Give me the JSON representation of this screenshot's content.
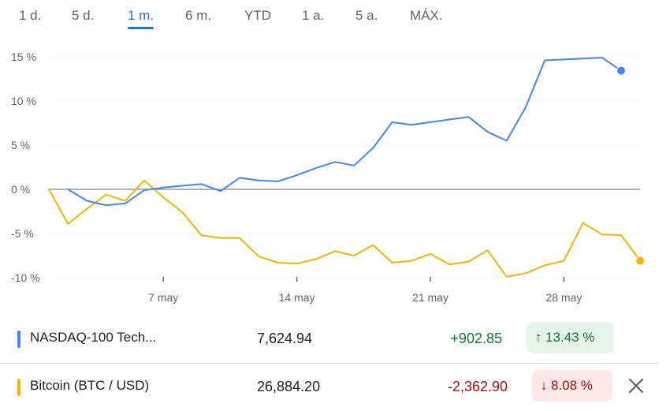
{
  "tabs": [
    {
      "label": "1 d.",
      "active": false
    },
    {
      "label": "5 d.",
      "active": false
    },
    {
      "label": "1 m.",
      "active": true
    },
    {
      "label": "6 m.",
      "active": false
    },
    {
      "label": "YTD",
      "active": false
    },
    {
      "label": "1 a.",
      "active": false
    },
    {
      "label": "5 a.",
      "active": false
    },
    {
      "label": "MÁX.",
      "active": false
    }
  ],
  "chart_data": {
    "type": "line",
    "title": "",
    "xlabel": "",
    "ylabel": "",
    "x_ticks": [
      "7 may",
      "14 may",
      "21 may",
      "28 may"
    ],
    "y_ticks": [
      "15 %",
      "10 %",
      "5 %",
      "0 %",
      "-5 %",
      "-10 %"
    ],
    "y_tick_values": [
      15,
      10,
      5,
      0,
      -5,
      -10
    ],
    "ylim": [
      -10,
      15
    ],
    "grid": "horizontal",
    "series": [
      {
        "name": "NASDAQ-100 Tech...",
        "color": "#4285f4",
        "points": [
          [
            "2023-05-02",
            0
          ],
          [
            "2023-05-03",
            -1.3
          ],
          [
            "2023-05-04",
            -1.8
          ],
          [
            "2023-05-05",
            -1.6
          ],
          [
            "2023-05-06",
            -0.1
          ],
          [
            "2023-05-07",
            0.2
          ],
          [
            "2023-05-08",
            0.4
          ],
          [
            "2023-05-09",
            0.6
          ],
          [
            "2023-05-10",
            -0.2
          ],
          [
            "2023-05-11",
            1.3
          ],
          [
            "2023-05-12",
            1.0
          ],
          [
            "2023-05-13",
            0.9
          ],
          [
            "2023-05-14",
            1.6
          ],
          [
            "2023-05-15",
            2.4
          ],
          [
            "2023-05-16",
            3.1
          ],
          [
            "2023-05-17",
            2.7
          ],
          [
            "2023-05-18",
            4.7
          ],
          [
            "2023-05-19",
            7.6
          ],
          [
            "2023-05-20",
            7.3
          ],
          [
            "2023-05-21",
            7.6
          ],
          [
            "2023-05-22",
            7.9
          ],
          [
            "2023-05-23",
            8.2
          ],
          [
            "2023-05-24",
            6.5
          ],
          [
            "2023-05-25",
            5.5
          ],
          [
            "2023-05-26",
            9.3
          ],
          [
            "2023-05-27",
            14.6
          ],
          [
            "2023-05-28",
            14.7
          ],
          [
            "2023-05-29",
            14.8
          ],
          [
            "2023-05-30",
            14.9
          ],
          [
            "2023-05-31",
            13.43
          ]
        ]
      },
      {
        "name": "Bitcoin (BTC / USD)",
        "color": "#f4b400",
        "points": [
          [
            "2023-05-01",
            0
          ],
          [
            "2023-05-02",
            -3.9
          ],
          [
            "2023-05-03",
            -2.2
          ],
          [
            "2023-05-04",
            -0.6
          ],
          [
            "2023-05-05",
            -1.3
          ],
          [
            "2023-05-06",
            1.0
          ],
          [
            "2023-05-07",
            -0.9
          ],
          [
            "2023-05-08",
            -2.6
          ],
          [
            "2023-05-09",
            -5.2
          ],
          [
            "2023-05-10",
            -5.5
          ],
          [
            "2023-05-11",
            -5.5
          ],
          [
            "2023-05-12",
            -7.6
          ],
          [
            "2023-05-13",
            -8.3
          ],
          [
            "2023-05-14",
            -8.4
          ],
          [
            "2023-05-15",
            -7.9
          ],
          [
            "2023-05-16",
            -7.0
          ],
          [
            "2023-05-17",
            -7.5
          ],
          [
            "2023-05-18",
            -6.3
          ],
          [
            "2023-05-19",
            -8.3
          ],
          [
            "2023-05-20",
            -8.1
          ],
          [
            "2023-05-21",
            -7.3
          ],
          [
            "2023-05-22",
            -8.5
          ],
          [
            "2023-05-23",
            -8.2
          ],
          [
            "2023-05-24",
            -6.9
          ],
          [
            "2023-05-25",
            -9.9
          ],
          [
            "2023-05-26",
            -9.5
          ],
          [
            "2023-05-27",
            -8.6
          ],
          [
            "2023-05-28",
            -8.1
          ],
          [
            "2023-05-29",
            -3.8
          ],
          [
            "2023-05-30",
            -5.1
          ],
          [
            "2023-05-31",
            -5.2
          ],
          [
            "2023-06-01",
            -8.08
          ]
        ]
      }
    ]
  },
  "legend": [
    {
      "name": "NASDAQ-100 Tech...",
      "color": "#4285f4",
      "price": "7,624.94",
      "change": "+902.85",
      "percent": "13.43 %",
      "arrow": "↑",
      "direction": "up"
    },
    {
      "name": "Bitcoin (BTC / USD)",
      "color": "#f4b400",
      "price": "26,884.20",
      "change": "-2,362.90",
      "percent": "8.08 %",
      "arrow": "↓",
      "direction": "down"
    }
  ],
  "close_icon": "close-icon"
}
